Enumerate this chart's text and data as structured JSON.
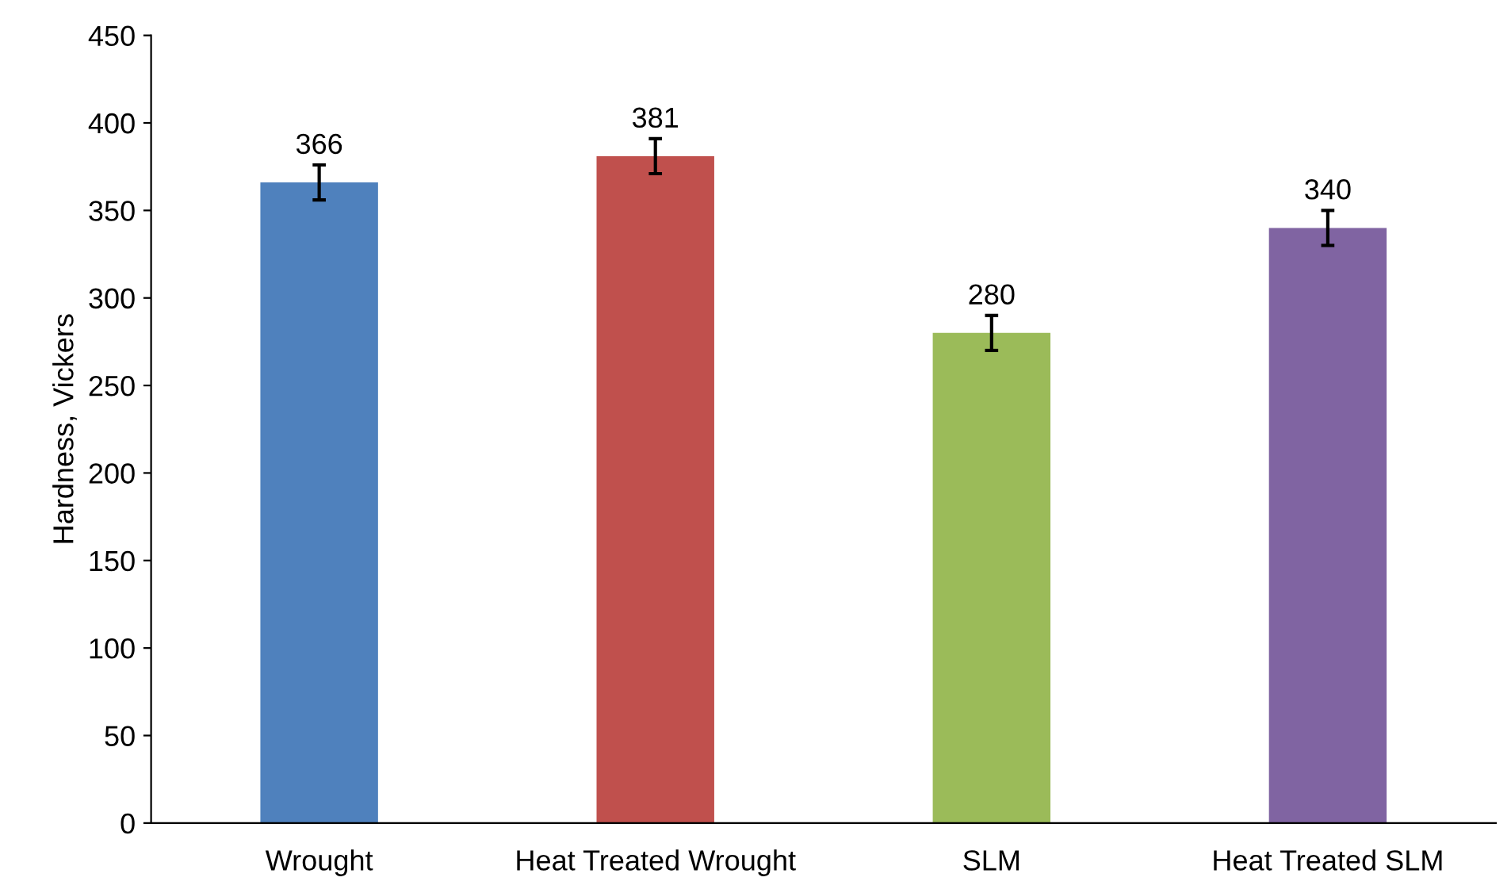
{
  "chart_data": {
    "type": "bar",
    "ylabel": "Hardness, Vickers",
    "categories": [
      "Wrought",
      "Heat Treated Wrought",
      "SLM",
      "Heat Treated SLM"
    ],
    "values": [
      366,
      381,
      280,
      340
    ],
    "colors": [
      "#4f81bd",
      "#c0504d",
      "#9bbb59",
      "#8064a2"
    ],
    "errors": [
      10,
      10,
      10,
      10
    ],
    "data_labels": true,
    "ylim": [
      0,
      450
    ],
    "yticks": [
      0,
      50,
      100,
      150,
      200,
      250,
      300,
      350,
      400,
      450
    ],
    "grid": false,
    "legend": false
  }
}
